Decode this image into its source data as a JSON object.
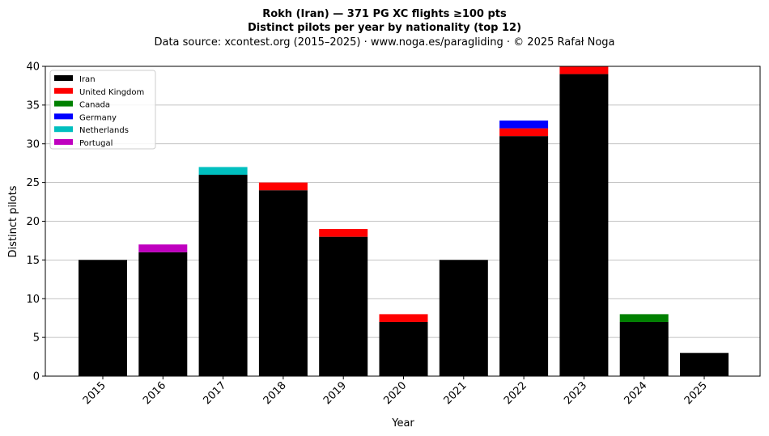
{
  "chart_data": {
    "type": "bar",
    "stacked": true,
    "title_line1": "Rokh (Iran)  —  371 PG XC flights ≥100 pts",
    "title_line2": "Distinct pilots per year by nationality (top 12)",
    "subtitle": "Data source: xcontest.org (2015–2025)  ·  www.noga.es/paragliding  ·  © 2025 Rafał Noga",
    "xlabel": "Year",
    "ylabel": "Distinct pilots",
    "ylim": [
      0,
      40
    ],
    "yticks": [
      0,
      5,
      10,
      15,
      20,
      25,
      30,
      35,
      40
    ],
    "grid": "horizontal",
    "legend_position": "top-left",
    "categories": [
      "2015",
      "2016",
      "2017",
      "2018",
      "2019",
      "2020",
      "2021",
      "2022",
      "2023",
      "2024",
      "2025"
    ],
    "series": [
      {
        "name": "Iran",
        "color": "#000000",
        "values": [
          15,
          16,
          26,
          24,
          18,
          7,
          15,
          31,
          39,
          7,
          3
        ]
      },
      {
        "name": "United Kingdom",
        "color": "#ff0000",
        "values": [
          0,
          0,
          0,
          1,
          1,
          1,
          0,
          1,
          1,
          0,
          0
        ]
      },
      {
        "name": "Canada",
        "color": "#008000",
        "values": [
          0,
          0,
          0,
          0,
          0,
          0,
          0,
          0,
          0,
          1,
          0
        ]
      },
      {
        "name": "Germany",
        "color": "#0000ff",
        "values": [
          0,
          0,
          0,
          0,
          0,
          0,
          0,
          1,
          0,
          0,
          0
        ]
      },
      {
        "name": "Netherlands",
        "color": "#00bfbf",
        "values": [
          0,
          0,
          1,
          0,
          0,
          0,
          0,
          0,
          0,
          0,
          0
        ]
      },
      {
        "name": "Portugal",
        "color": "#bf00bf",
        "values": [
          0,
          1,
          0,
          0,
          0,
          0,
          0,
          0,
          0,
          0,
          0
        ]
      }
    ]
  }
}
